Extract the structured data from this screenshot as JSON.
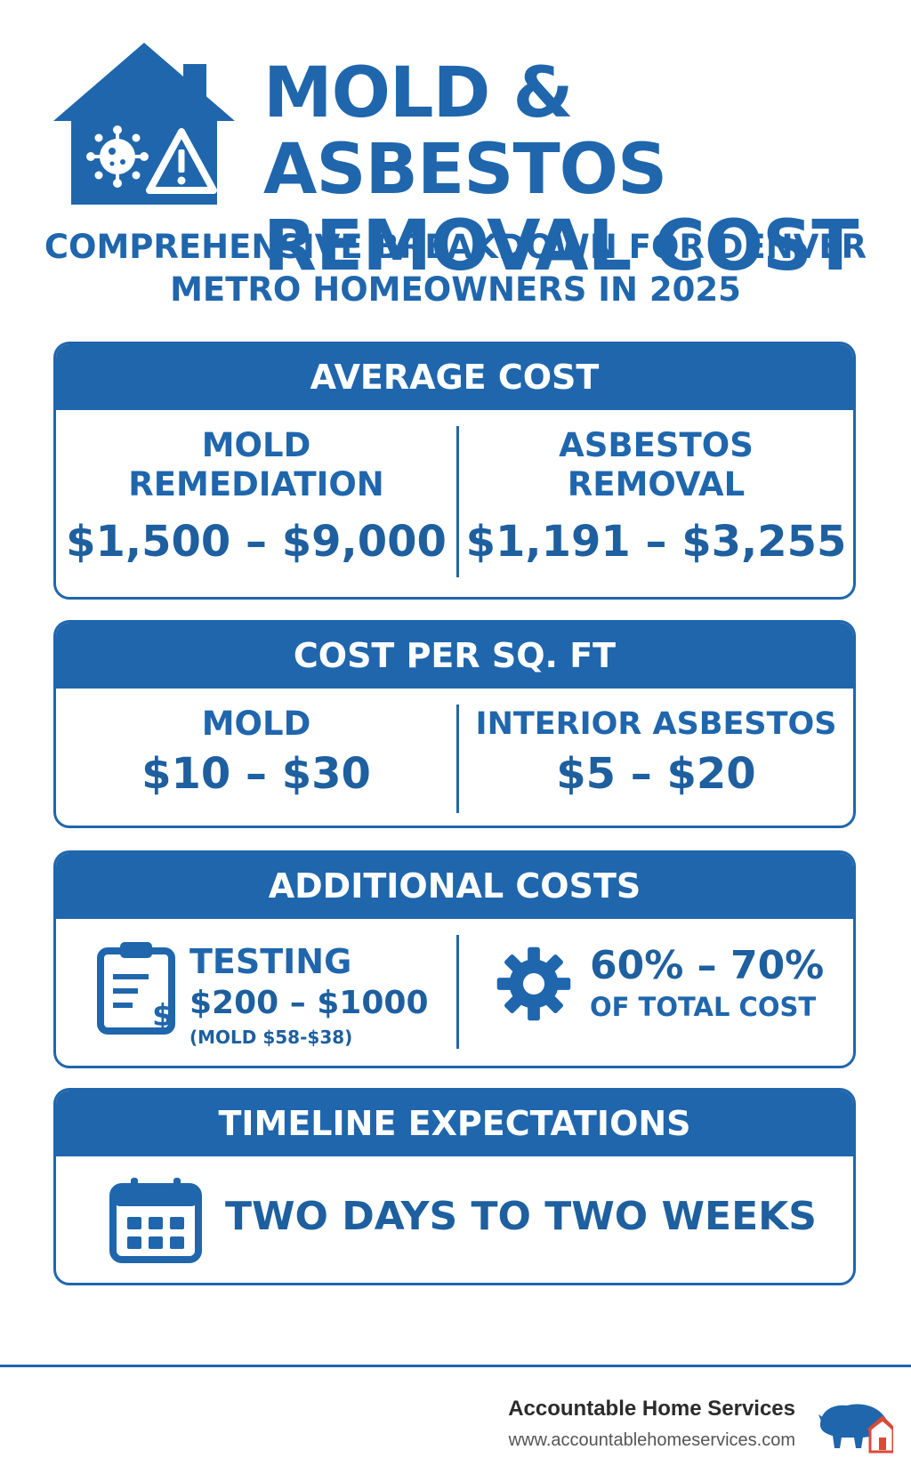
{
  "header": {
    "title_line1": "MOLD & ASBESTOS",
    "title_line2": "REMOVAL COST",
    "subtitle_line1": "COMPREHENSIVE BREAKDOWN FOR DENVER",
    "subtitle_line2": "METRO HOMEOWNERS IN 2025",
    "icon": "house-mold-hazard-icon"
  },
  "average_cost": {
    "heading": "AVERAGE COST",
    "left_label_1": "MOLD",
    "left_label_2": "REMEDIATION",
    "left_value": "$1,500 – $9,000",
    "right_label_1": "ASBESTOS",
    "right_label_2": "REMOVAL",
    "right_value": "$1,191 – $3,255"
  },
  "cost_per_sqft": {
    "heading": "COST PER SQ. FT",
    "left_label": "MOLD",
    "left_value": "$10 – $30",
    "right_label": "INTERIOR ASBESTOS",
    "right_value": "$5 – $20"
  },
  "additional_costs": {
    "heading": "ADDITIONAL COSTS",
    "testing_label": "TESTING",
    "testing_value": "$200 – $1000",
    "testing_note": "(MOLD $58-$38)",
    "labor_value": "60% – 70%",
    "labor_note": "OF TOTAL COST",
    "left_icon": "clipboard-dollar-icon",
    "right_icon": "gear-icon"
  },
  "timeline": {
    "heading": "TIMELINE EXPECTATIONS",
    "text": "TWO DAYS TO TWO WEEKS",
    "icon": "calendar-icon"
  },
  "footer": {
    "brand_name": "Accountable Home Services",
    "brand_url": "www.accountablehomeservices.com",
    "logo_icon": "bison-house-logo"
  },
  "colors": {
    "primary": "#1f66ad",
    "logo_red": "#d94a3a"
  }
}
